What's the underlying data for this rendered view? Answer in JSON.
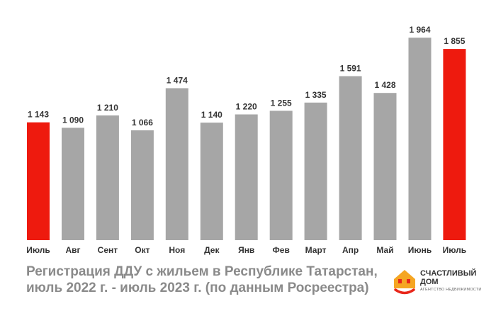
{
  "chart_data": {
    "type": "bar",
    "categories": [
      "Июль",
      "Авг",
      "Сент",
      "Окт",
      "Ноя",
      "Дек",
      "Янв",
      "Фев",
      "Март",
      "Апр",
      "Май",
      "Июнь",
      "Июль"
    ],
    "values": [
      1143,
      1090,
      1210,
      1066,
      1474,
      1140,
      1220,
      1255,
      1335,
      1591,
      1428,
      1964,
      1855
    ],
    "value_labels": [
      "1 143",
      "1 090",
      "1 210",
      "1 066",
      "1 474",
      "1 140",
      "1 220",
      "1 255",
      "1 335",
      "1 591",
      "1 428",
      "1 964",
      "1 855"
    ],
    "highlighted": [
      0,
      12
    ],
    "ylim": [
      0,
      2000
    ],
    "grid": false,
    "legend": "none",
    "colors": {
      "bar": "#a6a6a6",
      "highlight": "#ee1a0e",
      "label": "#333333"
    }
  },
  "caption": {
    "line1": "Регистрация ДДУ с жильем в Республике Татарстан,",
    "line2": "июль 2022 г. - июль 2023 г. (по данным Росреестра)"
  },
  "logo": {
    "name": "СЧАСТЛИВЫЙ ДОМ",
    "subtitle": "АГЕНТСТВО НЕДВИЖИМОСТИ",
    "colors": {
      "roof": "#f5a623",
      "accent": "#e8261a"
    }
  }
}
